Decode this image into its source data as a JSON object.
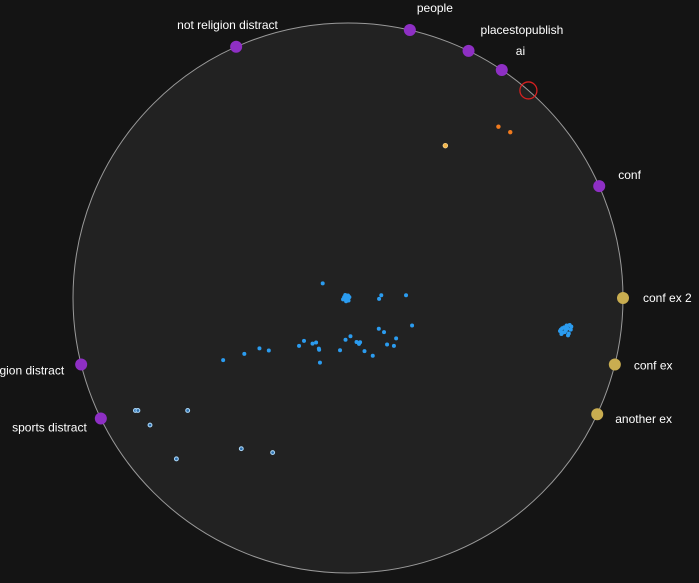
{
  "colors": {
    "background": "#141414",
    "circle_fill": "#222222",
    "circle_stroke": "#9a9a9a",
    "purple_anchor": "#8e2fc4",
    "gold_anchor": "#c9ad50",
    "point_blue": "#2b9cf0",
    "point_orange": "#f07a1e",
    "point_yellow": "#f2b44a",
    "point_pale": "#a8d4f5",
    "selection_ring": "#d42020"
  },
  "anchors": [
    {
      "label": "not religion distract",
      "kind": "purple",
      "angle": 114
    },
    {
      "label": "people",
      "kind": "purple",
      "angle": 77
    },
    {
      "label": "placestopublish",
      "kind": "purple",
      "angle": 64
    },
    {
      "label": "ai",
      "kind": "purple",
      "angle": 56
    },
    {
      "label": "conf",
      "kind": "purple",
      "angle": 24
    },
    {
      "label": "conf ex 2",
      "kind": "gold",
      "angle": 0
    },
    {
      "label": "conf ex",
      "kind": "gold",
      "angle": -14
    },
    {
      "label": "another ex",
      "kind": "gold",
      "angle": -25
    },
    {
      "label": "religion distract",
      "kind": "purple",
      "angle": -166
    },
    {
      "label": "sports distract",
      "kind": "purple",
      "angle": -154
    }
  ],
  "selection_marker": {
    "angle": 49
  },
  "points": [
    {
      "kind": "blue",
      "x": -0.092,
      "y": 0.053
    },
    {
      "kind": "blue",
      "x": -0.018,
      "y": -0.005
    },
    {
      "kind": "blue",
      "x": -0.007,
      "y": -0.012
    },
    {
      "kind": "blue",
      "x": 0.002,
      "y": -0.009
    },
    {
      "kind": "blue",
      "x": -0.014,
      "y": 0.003
    },
    {
      "kind": "blue",
      "x": 0.005,
      "y": 0.003
    },
    {
      "kind": "blue",
      "x": -0.01,
      "y": 0.011
    },
    {
      "kind": "blue",
      "x": 0.0,
      "y": 0.009
    },
    {
      "kind": "blue",
      "x": -0.005,
      "y": -0.001
    },
    {
      "kind": "blue",
      "x": 0.233,
      "y": -0.1
    },
    {
      "kind": "blue",
      "x": 0.131,
      "y": -0.124
    },
    {
      "kind": "blue",
      "x": 0.211,
      "y": 0.01
    },
    {
      "kind": "blue",
      "x": 0.121,
      "y": 0.01
    },
    {
      "kind": "blue",
      "x": 0.113,
      "y": -0.003
    },
    {
      "kind": "blue",
      "x": 0.112,
      "y": -0.112
    },
    {
      "kind": "blue",
      "x": 0.175,
      "y": -0.147
    },
    {
      "kind": "blue",
      "x": 0.167,
      "y": -0.174
    },
    {
      "kind": "blue",
      "x": 0.142,
      "y": -0.169
    },
    {
      "kind": "blue",
      "x": 0.009,
      "y": -0.139
    },
    {
      "kind": "blue",
      "x": -0.009,
      "y": -0.152
    },
    {
      "kind": "blue",
      "x": -0.116,
      "y": -0.162
    },
    {
      "kind": "blue",
      "x": -0.106,
      "y": -0.184
    },
    {
      "kind": "blue",
      "x": -0.105,
      "y": -0.188
    },
    {
      "kind": "blue",
      "x": -0.102,
      "y": -0.235
    },
    {
      "kind": "blue",
      "x": 0.09,
      "y": -0.21
    },
    {
      "kind": "blue",
      "x": 0.06,
      "y": -0.193
    },
    {
      "kind": "blue",
      "x": 0.04,
      "y": -0.167
    },
    {
      "kind": "blue",
      "x": 0.031,
      "y": -0.16
    },
    {
      "kind": "blue",
      "x": 0.044,
      "y": -0.161
    },
    {
      "kind": "blue",
      "x": -0.029,
      "y": -0.19
    },
    {
      "kind": "blue",
      "x": -0.178,
      "y": -0.174
    },
    {
      "kind": "blue",
      "x": -0.288,
      "y": -0.191
    },
    {
      "kind": "blue",
      "x": -0.377,
      "y": -0.203
    },
    {
      "kind": "blue",
      "x": -0.454,
      "y": -0.226
    },
    {
      "kind": "blue",
      "x": -0.16,
      "y": -0.156
    },
    {
      "kind": "blue",
      "x": -0.129,
      "y": -0.166
    },
    {
      "kind": "blue",
      "x": -0.322,
      "y": -0.183
    },
    {
      "kind": "blue",
      "x": 0.774,
      "y": -0.115
    },
    {
      "kind": "blue",
      "x": 0.779,
      "y": -0.11
    },
    {
      "kind": "blue",
      "x": 0.792,
      "y": -0.118
    },
    {
      "kind": "blue",
      "x": 0.788,
      "y": -0.124
    },
    {
      "kind": "blue",
      "x": 0.798,
      "y": -0.111
    },
    {
      "kind": "blue",
      "x": 0.803,
      "y": -0.129
    },
    {
      "kind": "blue",
      "x": 0.81,
      "y": -0.115
    },
    {
      "kind": "blue",
      "x": 0.812,
      "y": -0.104
    },
    {
      "kind": "blue",
      "x": 0.78,
      "y": -0.126
    },
    {
      "kind": "blue",
      "x": 0.771,
      "y": -0.12
    },
    {
      "kind": "blue",
      "x": 0.786,
      "y": -0.107
    },
    {
      "kind": "blue",
      "x": 0.795,
      "y": -0.1
    },
    {
      "kind": "blue",
      "x": 0.776,
      "y": -0.131
    },
    {
      "kind": "blue",
      "x": 0.806,
      "y": -0.098
    },
    {
      "kind": "blue",
      "x": 0.8,
      "y": -0.136
    },
    {
      "kind": "orange",
      "x": 0.547,
      "y": 0.623
    },
    {
      "kind": "orange",
      "x": 0.59,
      "y": 0.603
    },
    {
      "kind": "yellow",
      "x": 0.354,
      "y": 0.554
    },
    {
      "kind": "pale",
      "x": -0.773,
      "y": -0.409
    },
    {
      "kind": "pale",
      "x": -0.764,
      "y": -0.409
    },
    {
      "kind": "pale",
      "x": -0.72,
      "y": -0.462
    },
    {
      "kind": "pale",
      "x": -0.583,
      "y": -0.409
    },
    {
      "kind": "pale",
      "x": -0.388,
      "y": -0.548
    },
    {
      "kind": "pale",
      "x": -0.274,
      "y": -0.562
    },
    {
      "kind": "pale",
      "x": -0.624,
      "y": -0.585
    }
  ]
}
